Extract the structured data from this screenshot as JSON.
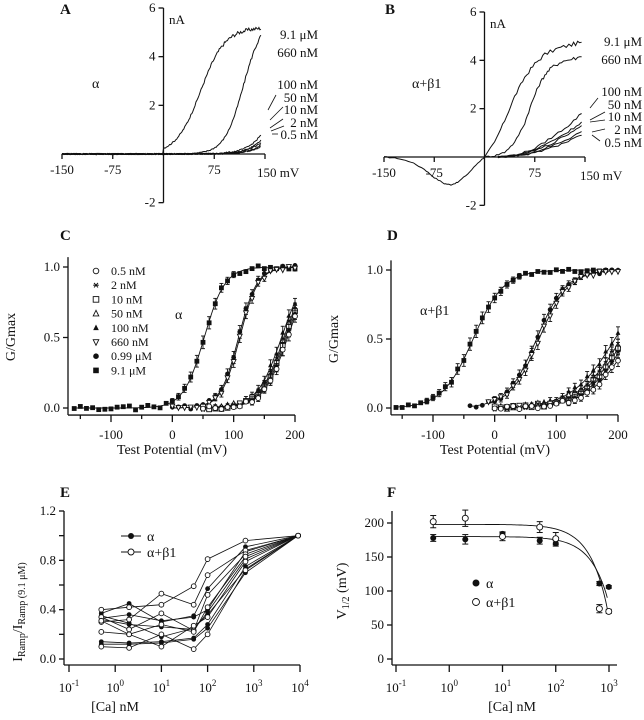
{
  "figure": {
    "panels": [
      "A",
      "B",
      "C",
      "D",
      "E",
      "F"
    ]
  },
  "chart_data": [
    {
      "id": "A",
      "type": "line",
      "panel_label": "A",
      "annotation": "α",
      "x_unit_label": "150 mV",
      "y_unit_label": "nA",
      "xticks": [
        -150,
        -75,
        75
      ],
      "xtick_labels": [
        "-150",
        "-75",
        "75"
      ],
      "yticks": [
        6,
        4,
        2,
        -2
      ],
      "ytick_labels": [
        "6",
        "4",
        "2",
        "-2"
      ],
      "xlim": [
        -150,
        150
      ],
      "ylim": [
        -2,
        6
      ],
      "series": [
        {
          "name": "9.1 μM",
          "v_half": 55,
          "slope": 18,
          "max": 5.2
        },
        {
          "name": "660 nM",
          "v_half": 118,
          "slope": 14,
          "max": 5.6
        },
        {
          "name": "100 nM",
          "v_half": 175,
          "slope": 18,
          "max": 5.2
        },
        {
          "name": "50 nM",
          "v_half": 182,
          "slope": 18,
          "max": 5.2
        },
        {
          "name": "10 nM",
          "v_half": 185,
          "slope": 18,
          "max": 5.2
        },
        {
          "name": "2 nM",
          "v_half": 190,
          "slope": 18,
          "max": 5.2
        },
        {
          "name": "0.5 nM",
          "v_half": 193,
          "slope": 18,
          "max": 5.2
        }
      ],
      "legend_labels": [
        "9.1 μM",
        "660 nM",
        "100 nM",
        "50 nM",
        "10 nM",
        "2 nM",
        "0.5 nM"
      ]
    },
    {
      "id": "B",
      "type": "line",
      "panel_label": "B",
      "annotation": "α+β1",
      "x_unit_label": "150 mV",
      "y_unit_label": "nA",
      "xticks": [
        -150,
        -75,
        75
      ],
      "xtick_labels": [
        "-150",
        "-75",
        "75"
      ],
      "yticks": [
        6,
        4,
        2,
        -2
      ],
      "ytick_labels": [
        "6",
        "4",
        "2",
        "-2"
      ],
      "xlim": [
        -150,
        150
      ],
      "ylim": [
        -2,
        6
      ],
      "series": [
        {
          "name": "9.1 μM",
          "points": [
            [
              -150,
              0
            ],
            [
              -130,
              -0.05
            ],
            [
              -110,
              -0.2
            ],
            [
              -90,
              -0.5
            ],
            [
              -75,
              -0.85
            ],
            [
              -60,
              -1.1
            ],
            [
              -50,
              -1.15
            ],
            [
              -40,
              -1.05
            ],
            [
              -25,
              -0.7
            ],
            [
              -10,
              -0.25
            ],
            [
              0,
              0
            ],
            [
              15,
              0.6
            ],
            [
              30,
              1.5
            ],
            [
              45,
              2.5
            ],
            [
              60,
              3.3
            ],
            [
              75,
              3.85
            ],
            [
              90,
              4.25
            ],
            [
              110,
              4.5
            ],
            [
              130,
              4.65
            ],
            [
              145,
              4.75
            ]
          ]
        },
        {
          "name": "660 nM",
          "points": [
            [
              0,
              0
            ],
            [
              15,
              0.05
            ],
            [
              30,
              0.2
            ],
            [
              45,
              0.6
            ],
            [
              60,
              1.4
            ],
            [
              70,
              2.2
            ],
            [
              80,
              2.9
            ],
            [
              90,
              3.4
            ],
            [
              100,
              3.7
            ],
            [
              115,
              3.95
            ],
            [
              130,
              4.05
            ],
            [
              145,
              4.15
            ]
          ]
        },
        {
          "name": "100 nM",
          "points": [
            [
              20,
              0
            ],
            [
              50,
              0.1
            ],
            [
              75,
              0.35
            ],
            [
              100,
              0.8
            ],
            [
              125,
              1.3
            ],
            [
              145,
              1.8
            ]
          ]
        },
        {
          "name": "50 nM",
          "points": [
            [
              20,
              0
            ],
            [
              50,
              0.08
            ],
            [
              75,
              0.3
            ],
            [
              100,
              0.65
            ],
            [
              125,
              1.05
            ],
            [
              145,
              1.45
            ]
          ]
        },
        {
          "name": "10 nM",
          "points": [
            [
              20,
              0
            ],
            [
              50,
              0.07
            ],
            [
              75,
              0.25
            ],
            [
              100,
              0.55
            ],
            [
              125,
              0.95
            ],
            [
              145,
              1.3
            ]
          ]
        },
        {
          "name": "2 nM",
          "points": [
            [
              20,
              0
            ],
            [
              50,
              0.05
            ],
            [
              75,
              0.2
            ],
            [
              100,
              0.45
            ],
            [
              125,
              0.75
            ],
            [
              145,
              1.05
            ]
          ]
        },
        {
          "name": "0.5 nM",
          "points": [
            [
              20,
              0
            ],
            [
              50,
              0.04
            ],
            [
              75,
              0.17
            ],
            [
              100,
              0.38
            ],
            [
              125,
              0.65
            ],
            [
              145,
              0.9
            ]
          ]
        }
      ],
      "legend_labels": [
        "9.1 μM",
        "660 nM",
        "100 nM",
        "50 nM",
        "10 nM",
        "2 nM",
        "0.5 nM"
      ]
    },
    {
      "id": "C",
      "type": "scatter",
      "panel_label": "C",
      "annotation": "α",
      "title": "",
      "xlabel": "Test Potential (mV)",
      "ylabel": "G/Gmax",
      "xticks": [
        -100,
        0,
        100,
        200
      ],
      "xtick_labels": [
        "-100",
        "0",
        "100",
        "200"
      ],
      "yticks": [
        0.0,
        0.5,
        1.0
      ],
      "ytick_labels": [
        "0.0",
        "0.5",
        "1.0"
      ],
      "xlim": [
        -170,
        200
      ],
      "ylim": [
        0,
        1.05
      ],
      "legend": [
        {
          "label": "0.5 nM",
          "marker": "circle-open"
        },
        {
          "label": "2 nM",
          "marker": "asterisk"
        },
        {
          "label": "10 nM",
          "marker": "square-open"
        },
        {
          "label": "50 nM",
          "marker": "triangle-open"
        },
        {
          "label": "100 nM",
          "marker": "triangle-filled"
        },
        {
          "label": "660 nM",
          "marker": "triangle-down-open"
        },
        {
          "label": "0.99 μM",
          "marker": "circle-filled"
        },
        {
          "label": "9.1 μM",
          "marker": "square-filled"
        }
      ],
      "series": [
        {
          "name": "9.1 μM",
          "v_half": 52,
          "slope": 17,
          "x_start": -160,
          "x_end": 200
        },
        {
          "name": "0.99 μM",
          "v_half": 108,
          "slope": 15,
          "x_start": 0,
          "x_end": 200
        },
        {
          "name": "660 nM",
          "v_half": 110,
          "slope": 15,
          "x_start": 0,
          "x_end": 200
        },
        {
          "name": "100 nM",
          "v_half": 178,
          "slope": 20,
          "x_start": 50,
          "x_end": 200
        },
        {
          "name": "50 nM",
          "v_half": 182,
          "slope": 20,
          "x_start": 50,
          "x_end": 200
        },
        {
          "name": "10 nM",
          "v_half": 184,
          "slope": 20,
          "x_start": 50,
          "x_end": 200
        },
        {
          "name": "2 nM",
          "v_half": 186,
          "slope": 20,
          "x_start": 50,
          "x_end": 200
        },
        {
          "name": "0.5 nM",
          "v_half": 188,
          "slope": 20,
          "x_start": 50,
          "x_end": 200
        }
      ]
    },
    {
      "id": "D",
      "type": "scatter",
      "panel_label": "D",
      "annotation": "α+β1",
      "xlabel": "Test Potential (mV)",
      "ylabel": "G/Gmax",
      "xticks": [
        -100,
        0,
        100,
        200
      ],
      "xtick_labels": [
        "-100",
        "0",
        "100",
        "200"
      ],
      "yticks": [
        0.0,
        0.5,
        1.0
      ],
      "ytick_labels": [
        "0.0",
        "0.5",
        "1.0"
      ],
      "xlim": [
        -170,
        200
      ],
      "ylim": [
        0,
        1.05
      ],
      "series": [
        {
          "name": "9.1 μM",
          "v_half": -35,
          "slope": 25,
          "x_start": -160,
          "x_end": 180
        },
        {
          "name": "0.99 μM",
          "v_half": 68,
          "slope": 24,
          "x_start": -40,
          "x_end": 200
        },
        {
          "name": "660 nM",
          "v_half": 72,
          "slope": 24,
          "x_start": -10,
          "x_end": 200
        },
        {
          "name": "100 nM",
          "v_half": 195,
          "slope": 35,
          "x_start": 0,
          "x_end": 200
        },
        {
          "name": "50 nM",
          "v_half": 205,
          "slope": 35,
          "x_start": 0,
          "x_end": 200
        },
        {
          "name": "10 nM",
          "v_half": 210,
          "slope": 35,
          "x_start": 0,
          "x_end": 200
        },
        {
          "name": "2 nM",
          "v_half": 215,
          "slope": 35,
          "x_start": 0,
          "x_end": 200
        },
        {
          "name": "0.5 nM",
          "v_half": 222,
          "slope": 35,
          "x_start": 0,
          "x_end": 200
        }
      ]
    },
    {
      "id": "E",
      "type": "line",
      "panel_label": "E",
      "xlabel": "[Ca] nM",
      "ylabel": "I_Ramp/I_Ramp (9.1 μM)",
      "xscale": "log",
      "xticks": [
        0.1,
        1,
        10,
        100,
        1000,
        10000
      ],
      "xtick_labels": [
        "10-1",
        "100",
        "101",
        "102",
        "103",
        "104"
      ],
      "yticks": [
        0.0,
        0.4,
        0.8,
        1.2
      ],
      "ytick_labels": [
        "0.0",
        "0.4",
        "0.8",
        "1.2"
      ],
      "ylim": [
        0,
        1.2
      ],
      "x": [
        0.5,
        2,
        10,
        50,
        100,
        660,
        9100
      ],
      "legend": [
        {
          "label": "α",
          "marker": "circle-filled"
        },
        {
          "label": "α+β1",
          "marker": "circle-open"
        }
      ],
      "series": [
        {
          "name": "α",
          "values": [
            0.37,
            0.45,
            0.3,
            0.35,
            0.57,
            0.91,
            1.0
          ]
        },
        {
          "name": "α",
          "values": [
            0.33,
            0.36,
            0.31,
            0.34,
            0.4,
            0.87,
            1.0
          ]
        },
        {
          "name": "α",
          "values": [
            0.32,
            0.28,
            0.26,
            0.24,
            0.38,
            0.81,
            1.0
          ]
        },
        {
          "name": "α",
          "values": [
            0.14,
            0.13,
            0.14,
            0.17,
            0.28,
            0.75,
            1.0
          ]
        },
        {
          "name": "α",
          "values": [
            0.12,
            0.12,
            0.13,
            0.16,
            0.25,
            0.7,
            1.0
          ]
        },
        {
          "name": "α",
          "values": [
            0.35,
            0.29,
            0.18,
            0.25,
            0.36,
            0.73,
            1.0
          ]
        },
        {
          "name": "α+β1",
          "values": [
            0.4,
            0.42,
            0.44,
            0.59,
            0.81,
            0.96,
            1.0
          ]
        },
        {
          "name": "α+β1",
          "values": [
            0.3,
            0.32,
            0.53,
            0.44,
            0.68,
            0.88,
            1.0
          ]
        },
        {
          "name": "α+β1",
          "values": [
            0.34,
            0.24,
            0.37,
            0.23,
            0.52,
            0.85,
            1.0
          ]
        },
        {
          "name": "α+β1",
          "values": [
            0.22,
            0.2,
            0.28,
            0.22,
            0.42,
            0.83,
            1.0
          ]
        },
        {
          "name": "α+β1",
          "values": [
            0.31,
            0.2,
            0.1,
            0.27,
            0.34,
            0.79,
            1.0
          ]
        },
        {
          "name": "α+β1",
          "values": [
            0.1,
            0.09,
            0.2,
            0.08,
            0.2,
            0.72,
            1.0
          ]
        }
      ]
    },
    {
      "id": "F",
      "type": "scatter",
      "panel_label": "F",
      "xlabel": "[Ca] nM",
      "ylabel": "V1/2 (mV)",
      "xscale": "log",
      "xticks": [
        0.1,
        1,
        10,
        100,
        1000
      ],
      "xtick_labels": [
        "10-1",
        "100",
        "101",
        "102",
        "103"
      ],
      "yticks": [
        0,
        50,
        100,
        150,
        200
      ],
      "ytick_labels": [
        "0",
        "50",
        "100",
        "150",
        "200"
      ],
      "ylim": [
        0,
        220
      ],
      "legend": [
        {
          "label": "α",
          "marker": "circle-filled"
        },
        {
          "label": "α+β1",
          "marker": "circle-open"
        }
      ],
      "series": [
        {
          "name": "α",
          "x": [
            0.5,
            2,
            10,
            50,
            100,
            660,
            990
          ],
          "values": [
            178,
            176,
            184,
            174,
            170,
            111,
            106
          ],
          "errors": [
            5,
            7,
            3,
            5,
            4,
            3,
            2
          ],
          "fit": {
            "top": 180,
            "k": 0.00063
          }
        },
        {
          "name": "α+β1",
          "x": [
            0.5,
            2,
            10,
            50,
            100,
            660,
            990
          ],
          "values": [
            202,
            207,
            180,
            194,
            177,
            74,
            70
          ],
          "errors": [
            9,
            12,
            6,
            8,
            9,
            6,
            3
          ],
          "fit": {
            "top": 198,
            "k": 0.00075
          }
        }
      ]
    }
  ]
}
